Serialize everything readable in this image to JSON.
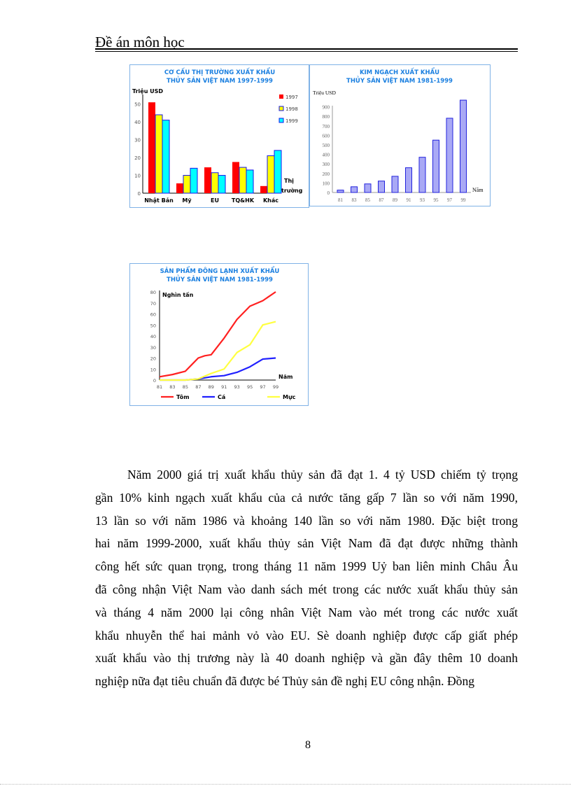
{
  "header": {
    "title": "Đề án môn học"
  },
  "charts": [
    {
      "type": "bar",
      "title": [
        "CƠ CẤU THỊ TRƯỜNG XUẤT KHẨU",
        "THỦY SẢN VIỆT NAM 1997-1999"
      ],
      "ylabel": "Triệu USD",
      "xlabel": "Thị trường",
      "ylim": [
        0,
        55
      ],
      "yticks": [
        0,
        10,
        20,
        30,
        40,
        50
      ],
      "categories": [
        "Nhật Bản",
        "Mỹ",
        "EU",
        "TQ&HK",
        "Khác"
      ],
      "series": [
        {
          "name": "1997",
          "color": "#ff0000",
          "values": [
            51,
            5.5,
            14.5,
            17.5,
            4
          ]
        },
        {
          "name": "1998",
          "color": "#ffff00",
          "values": [
            44,
            10,
            11.5,
            14.5,
            21
          ]
        },
        {
          "name": "1999",
          "color": "#00ffff",
          "values": [
            41,
            14,
            10,
            13,
            24
          ]
        }
      ],
      "legend": "top-right",
      "title_color": "#1a7fe0"
    },
    {
      "type": "bar",
      "title": [
        "KIM NGẠCH XUẤT KHẨU",
        "THỦY SẢN VIỆT NAM 1981-1999"
      ],
      "ylabel": "Triệu USD",
      "xlabel": "Năm",
      "ylim": [
        0,
        1000
      ],
      "yticks": [
        0,
        100,
        200,
        300,
        400,
        500,
        600,
        700,
        800,
        900
      ],
      "categories": [
        "81",
        "83",
        "85",
        "87",
        "89",
        "91",
        "93",
        "95",
        "97",
        "99"
      ],
      "values": [
        25,
        60,
        90,
        120,
        170,
        260,
        370,
        550,
        780,
        970
      ],
      "color": "#a9a9f5",
      "title_color": "#1a7fe0"
    },
    {
      "type": "line",
      "title": [
        "SẢN PHẨM ĐÔNG LẠNH XUẤT KHẨU",
        "THỦY SẢN VIỆT NAM 1981-1999"
      ],
      "ylabel": "Nghìn tấn",
      "xlabel": "Năm",
      "ylim": [
        0,
        80
      ],
      "yticks": [
        0,
        10,
        20,
        30,
        40,
        50,
        60,
        70,
        80
      ],
      "xticks": [
        "81",
        "83",
        "85",
        "87",
        "89",
        "91",
        "93",
        "95",
        "97",
        "99"
      ],
      "xlim": [
        81,
        99
      ],
      "series": [
        {
          "name": "Tôm",
          "color": "#ff2020",
          "x": [
            81,
            83,
            85,
            86,
            87,
            88,
            89,
            91,
            93,
            95,
            97,
            99
          ],
          "y": [
            3,
            5,
            8,
            14,
            20,
            22,
            23,
            38,
            55,
            67,
            72,
            80
          ]
        },
        {
          "name": "Cá",
          "color": "#2020ff",
          "x": [
            81,
            85,
            87,
            89,
            91,
            93,
            95,
            97,
            99
          ],
          "y": [
            0,
            0,
            1,
            3,
            4,
            7,
            12,
            19,
            20
          ]
        },
        {
          "name": "Mực",
          "color": "#ffff40",
          "x": [
            81,
            85,
            87,
            89,
            91,
            93,
            95,
            97,
            99
          ],
          "y": [
            0,
            0,
            1,
            6,
            10,
            25,
            32,
            50,
            53
          ]
        }
      ],
      "legend": "bottom",
      "title_color": "#1a7fe0"
    }
  ],
  "body": {
    "lines": [
      "Năm 2000 giá trị xuất khẩu thủy sản đã đạt 1. 4 tỷ USD chiếm tỷ trọng",
      "gần 10% kinh ngạch xuất khẩu của cả nước tăng gấp 7 lần so với năm 1990,",
      "13 lần so với năm 1986 và khoảng 140 lần so với năm 1980. Đặc biệt trong",
      "hai năm 1999-2000, xuất khẩu thủy sản Việt Nam đã đạt được những thành",
      "công hết sức quan trọng, trong tháng 11 năm 1999 Uỷ ban liên minh Châu Âu",
      "đã công nhận Việt Nam vào danh sách mét trong các nước xuất khẩu thủy sản",
      "và tháng 4 năm 2000 lại công nhân Việt Nam vào mét trong các nước xuất",
      "khẩu nhuyễn thể hai mảnh vỏ vào EU. Sè doanh nghiệp được cấp giất phép",
      "xuất khẩu vào thị trương này là 40 doanh nghiệp và gần đây thêm 10 doanh",
      "nghiệp nữa đạt tiêu chuẩn đã được bé Thủy sản đề nghị EU công nhận. Đồng"
    ]
  },
  "footer": {
    "page_number": "8"
  }
}
